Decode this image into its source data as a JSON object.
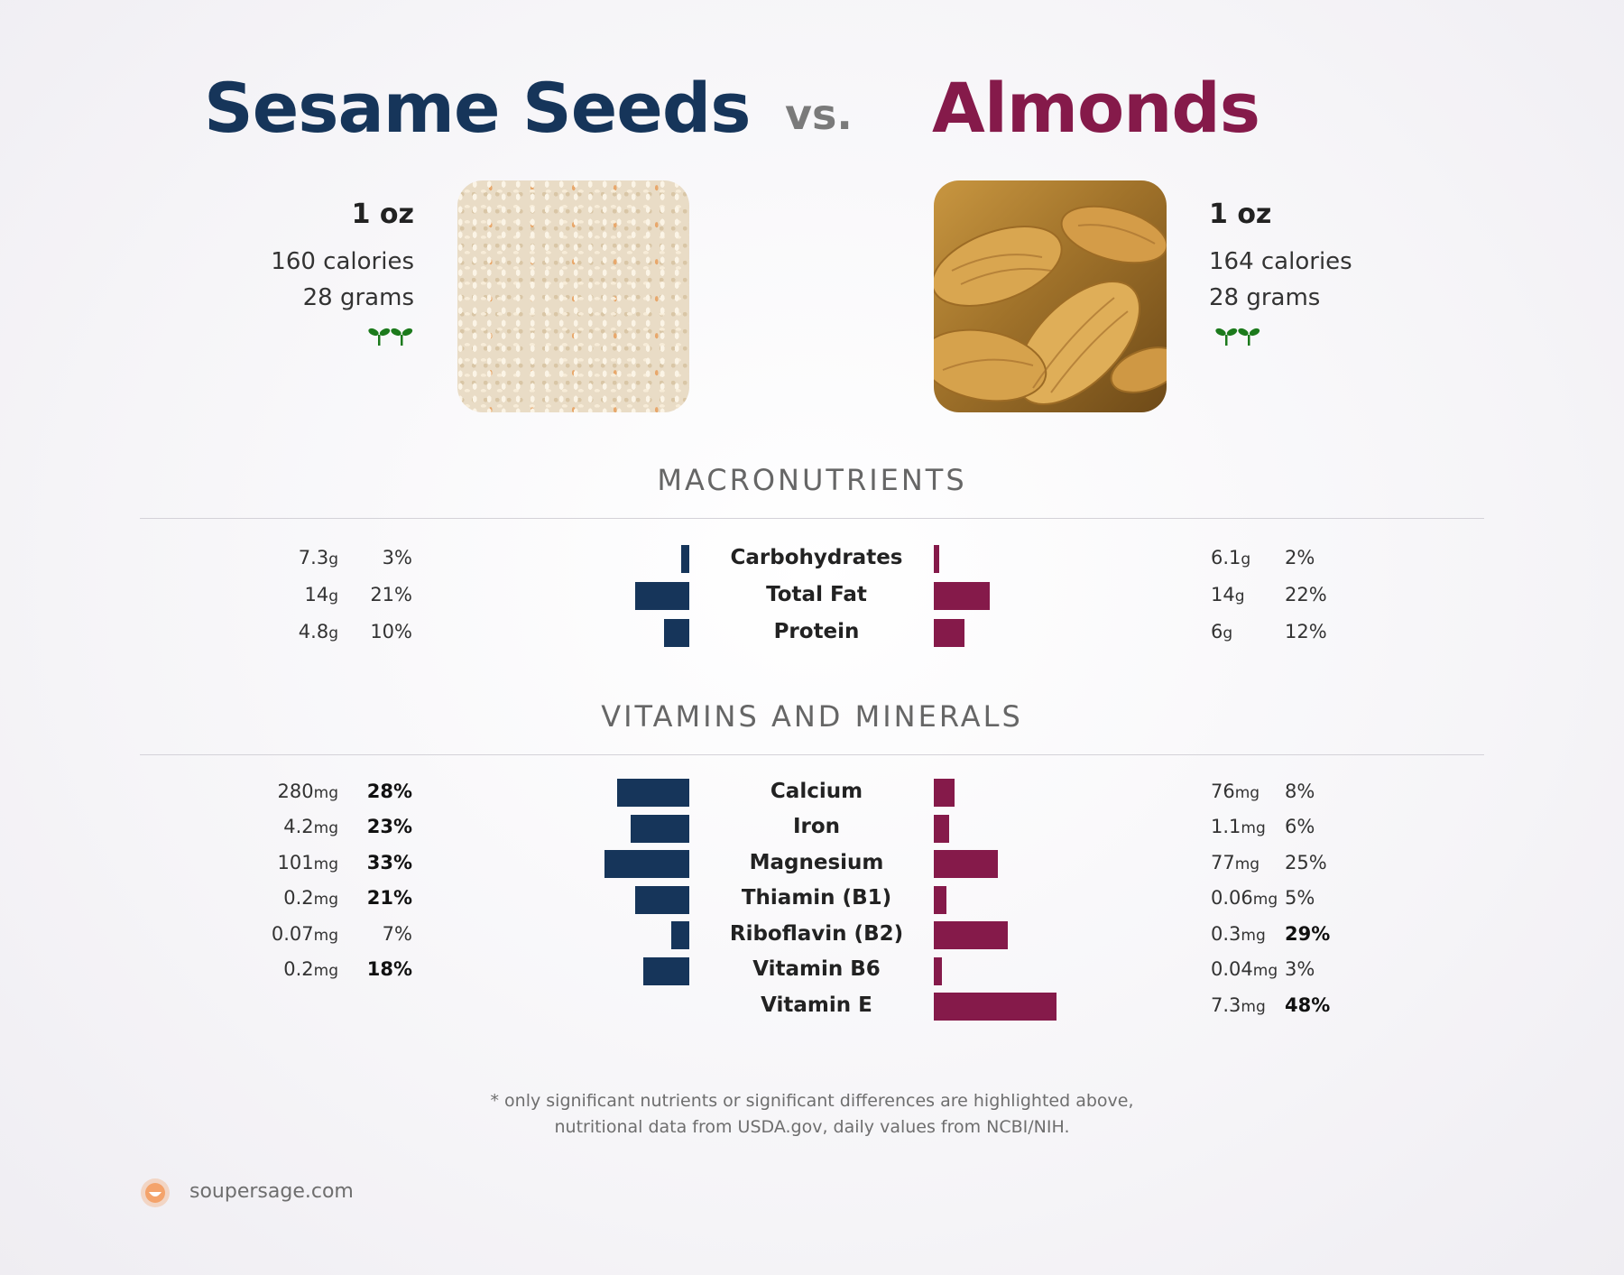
{
  "left_food": {
    "name": "Sesame Seeds",
    "serving": "1 oz",
    "calories": "160 calories",
    "grams": "28 grams",
    "color": "#16355a",
    "icon": "sprouts-icon"
  },
  "vs_label": "vs.",
  "right_food": {
    "name": "Almonds",
    "serving": "1 oz",
    "calories": "164 calories",
    "grams": "28 grams",
    "color": "#851a4a",
    "icon": "sprouts-icon"
  },
  "sections": {
    "macros_title": "MACRONUTRIENTS",
    "vitamins_title": "VITAMINS AND MINERALS"
  },
  "chart_data": [
    {
      "type": "bar",
      "title": "MACRONUTRIENTS",
      "categories": [
        "Carbohydrates",
        "Total Fat",
        "Protein"
      ],
      "series": [
        {
          "name": "Sesame Seeds",
          "values": [
            3,
            21,
            10
          ],
          "amounts": [
            "7.3",
            "14",
            "4.8"
          ],
          "units": [
            "g",
            "g",
            "g"
          ],
          "bold": [
            false,
            false,
            false
          ]
        },
        {
          "name": "Almonds",
          "values": [
            2,
            22,
            12
          ],
          "amounts": [
            "6.1",
            "14",
            "6"
          ],
          "units": [
            "g",
            "g",
            "g"
          ],
          "bold": [
            false,
            false,
            false
          ]
        }
      ]
    },
    {
      "type": "bar",
      "title": "VITAMINS AND MINERALS",
      "categories": [
        "Calcium",
        "Iron",
        "Magnesium",
        "Thiamin (B1)",
        "Riboflavin (B2)",
        "Vitamin B6",
        "Vitamin E"
      ],
      "series": [
        {
          "name": "Sesame Seeds",
          "values": [
            28,
            23,
            33,
            21,
            7,
            18,
            null
          ],
          "amounts": [
            "280",
            "4.2",
            "101",
            "0.2",
            "0.07",
            "0.2",
            null
          ],
          "units": [
            "mg",
            "mg",
            "mg",
            "mg",
            "mg",
            "mg",
            null
          ],
          "bold": [
            true,
            true,
            true,
            true,
            false,
            true,
            false
          ]
        },
        {
          "name": "Almonds",
          "values": [
            8,
            6,
            25,
            5,
            29,
            3,
            48
          ],
          "amounts": [
            "76",
            "1.1",
            "77",
            "0.06",
            "0.3",
            "0.04",
            "7.3"
          ],
          "units": [
            "mg",
            "mg",
            "mg",
            "mg",
            "mg",
            "mg",
            "mg"
          ],
          "bold": [
            false,
            false,
            false,
            false,
            true,
            false,
            true
          ]
        }
      ]
    }
  ],
  "footnote": {
    "line1": "* only significant nutrients or significant differences are highlighted above,",
    "line2": "nutritional data from USDA.gov, daily values from NCBI/NIH."
  },
  "branding": {
    "site": "soupersage.com",
    "logo_icon": "soupersage-logo-icon",
    "logo_color": "#f4a36b"
  }
}
